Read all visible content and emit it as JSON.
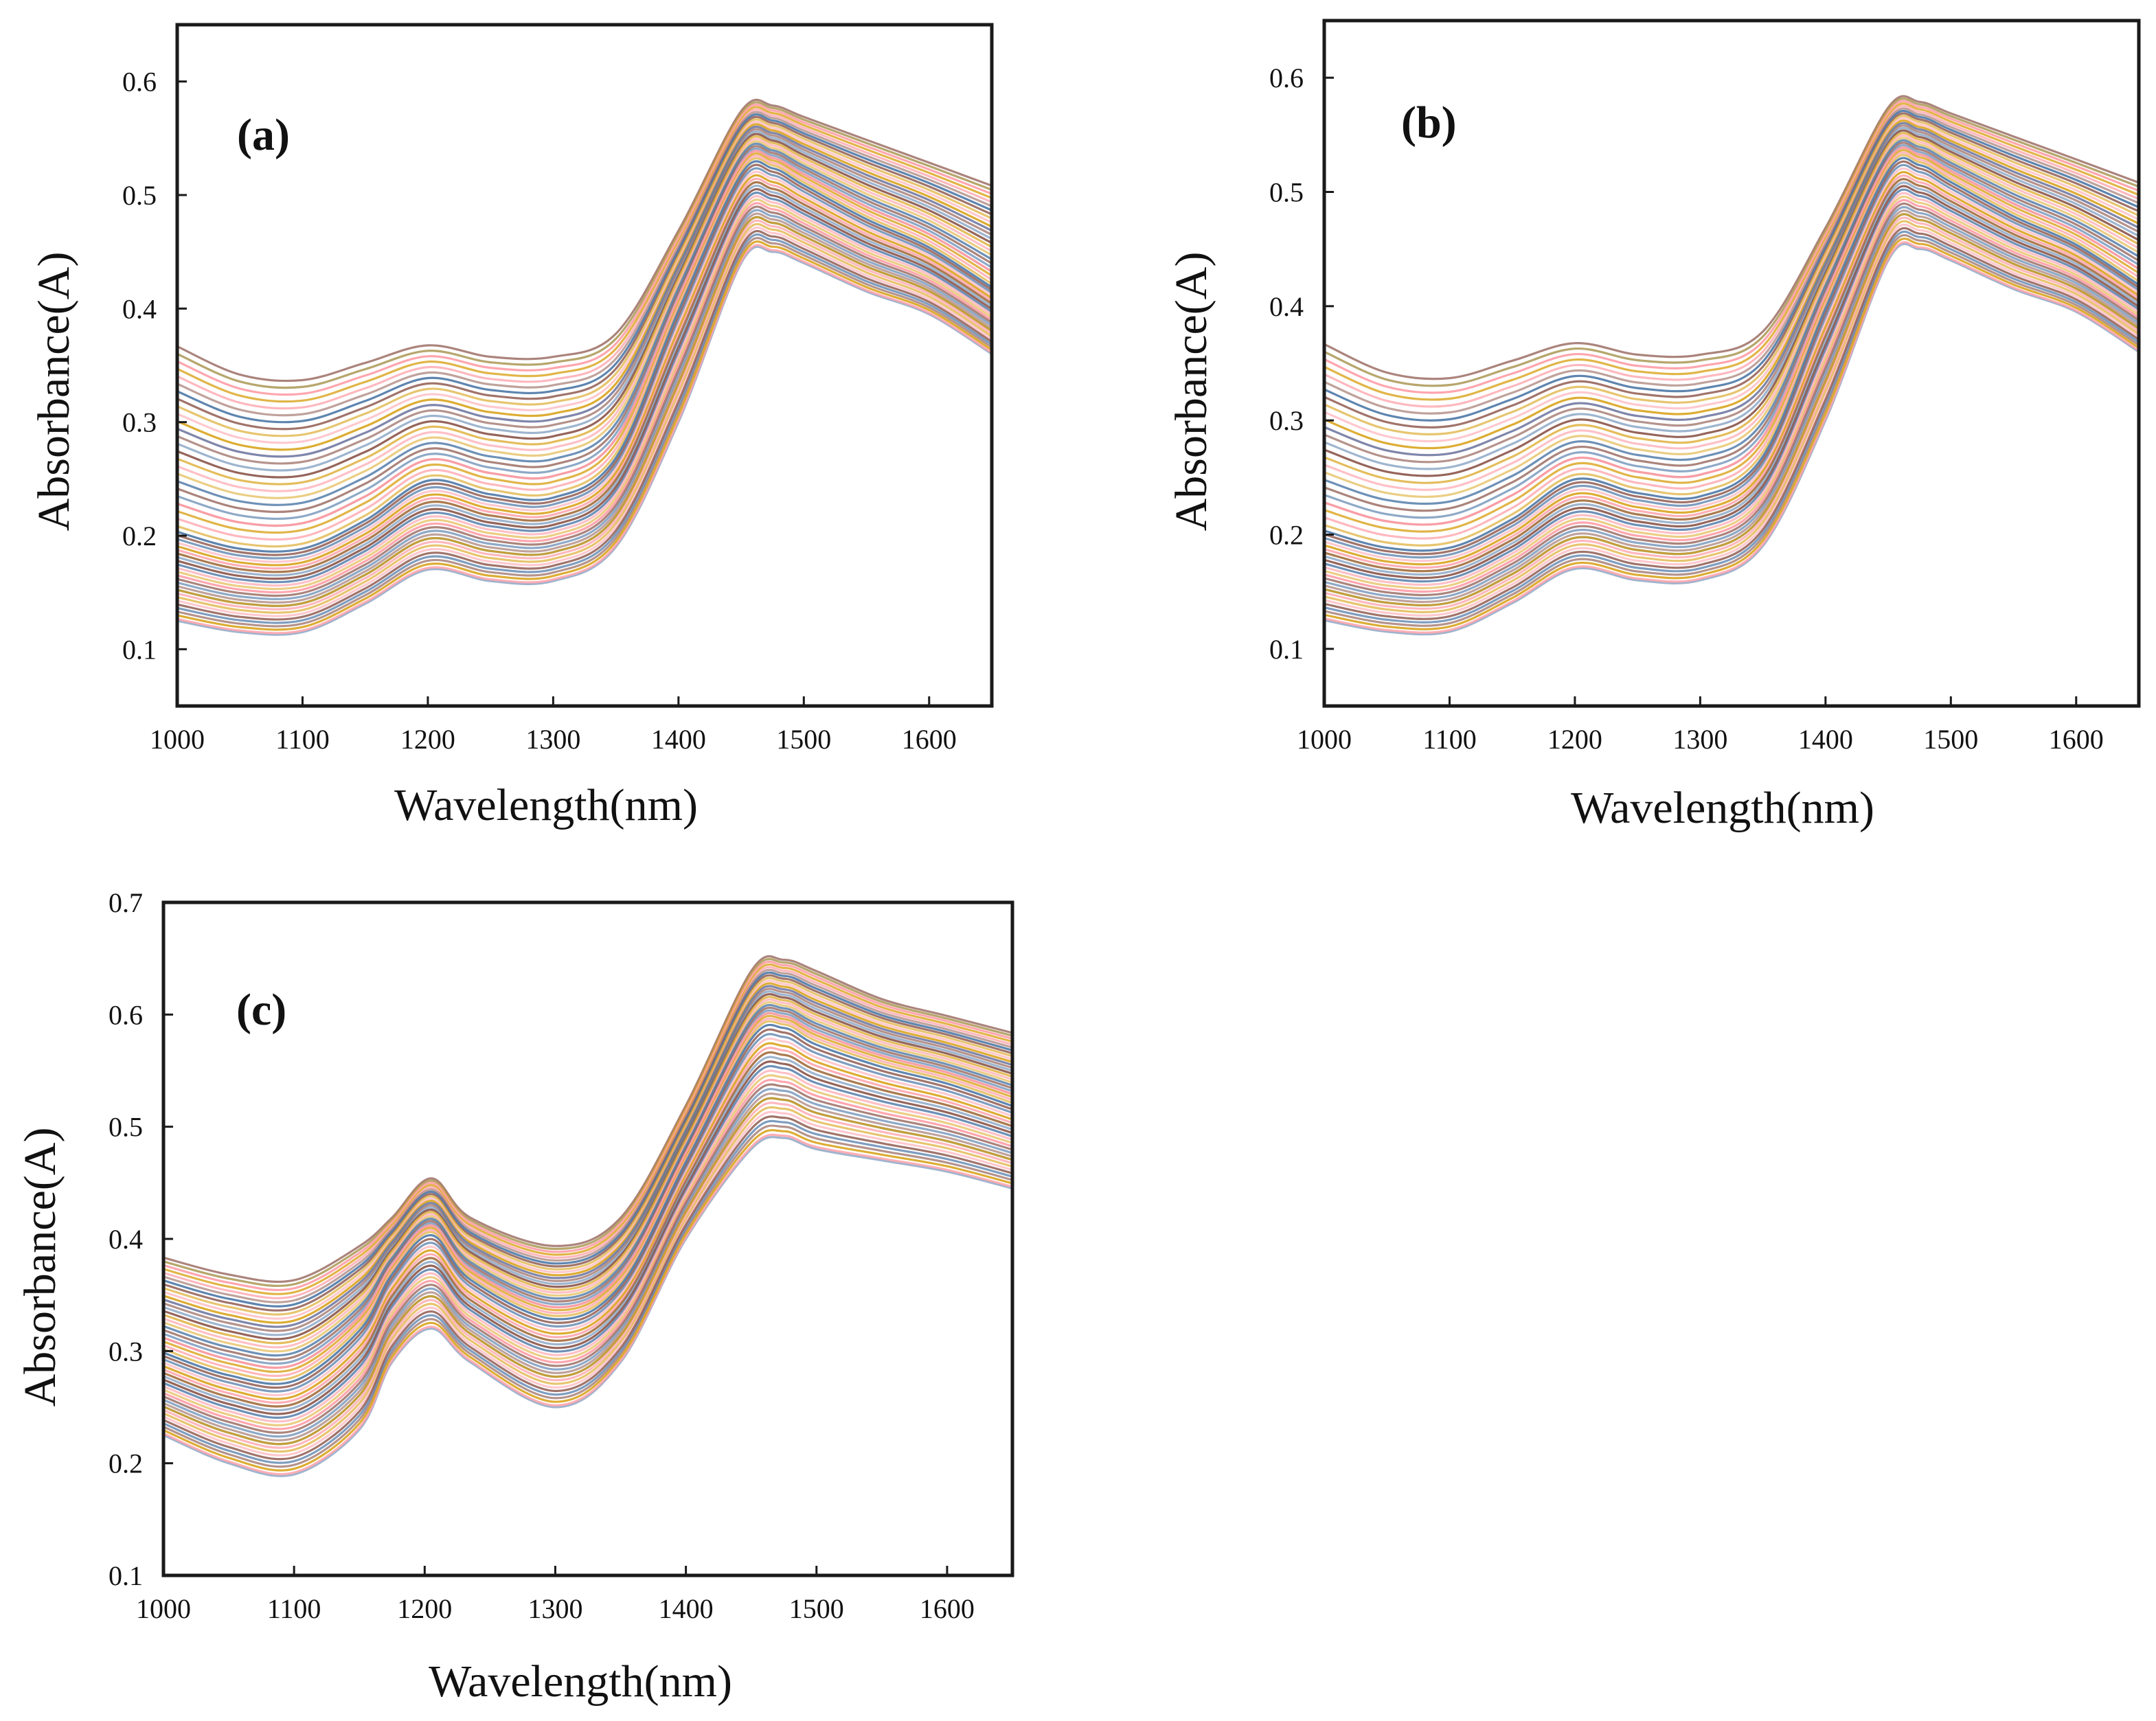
{
  "figure": {
    "panels": [
      "a",
      "b",
      "c"
    ]
  },
  "palette": [
    "#4e79a7",
    "#f28e2b",
    "#e15759",
    "#76b7b2",
    "#59a14f",
    "#edc948",
    "#b07aa1",
    "#ff9da7",
    "#9c755f",
    "#bab0ac",
    "#1f77b4",
    "#ff7f0e",
    "#2ca02c",
    "#17becf",
    "#8c564b",
    "#7f7f7f",
    "#bcbd22",
    "#d62728",
    "#9467bd",
    "#e377c2",
    "#6b8e23",
    "#daa520",
    "#2f4f4f",
    "#cd853f",
    "#20b2aa",
    "#87ceeb",
    "#556b2f",
    "#f4a460"
  ],
  "chart_data": [
    {
      "id": "a",
      "type": "line",
      "panel_label": "(a)",
      "title": "",
      "xlabel": "Wavelength(nm)",
      "ylabel": "Absorbance(A)",
      "xlim": [
        1000,
        1650
      ],
      "ylim": [
        0.05,
        0.65
      ],
      "xticks": [
        1000,
        1100,
        1200,
        1300,
        1400,
        1500,
        1600
      ],
      "yticks": [
        0.1,
        0.2,
        0.3,
        0.4,
        0.5,
        0.6
      ],
      "xtick_labels": [
        "1000",
        "1100",
        "1200",
        "1300",
        "1400",
        "1500",
        "1600"
      ],
      "ytick_labels": [
        "0.1",
        "0.2",
        "0.3",
        "0.4",
        "0.5",
        "0.6"
      ],
      "wavelengths": [
        1000,
        1050,
        1100,
        1150,
        1200,
        1250,
        1300,
        1350,
        1400,
        1450,
        1475,
        1500,
        1550,
        1600,
        1650
      ],
      "series_count": 56,
      "representative_series": [
        {
          "name": "lowest",
          "values": [
            0.125,
            0.115,
            0.115,
            0.14,
            0.17,
            0.16,
            0.16,
            0.19,
            0.3,
            0.44,
            0.45,
            0.44,
            0.415,
            0.395,
            0.36
          ]
        },
        {
          "name": "median",
          "values": [
            0.205,
            0.19,
            0.19,
            0.215,
            0.25,
            0.238,
            0.235,
            0.27,
            0.4,
            0.52,
            0.525,
            0.51,
            0.48,
            0.455,
            0.42
          ]
        },
        {
          "name": "highest",
          "values": [
            0.37,
            0.345,
            0.34,
            0.355,
            0.37,
            0.36,
            0.36,
            0.38,
            0.47,
            0.575,
            0.58,
            0.57,
            0.55,
            0.53,
            0.51
          ]
        }
      ]
    },
    {
      "id": "b",
      "type": "line",
      "panel_label": "(b)",
      "title": "",
      "xlabel": "Wavelength(nm)",
      "ylabel": "Absorbance(A)",
      "xlim": [
        1000,
        1650
      ],
      "ylim": [
        0.05,
        0.65
      ],
      "xticks": [
        1000,
        1100,
        1200,
        1300,
        1400,
        1500,
        1600
      ],
      "yticks": [
        0.1,
        0.2,
        0.3,
        0.4,
        0.5,
        0.6
      ],
      "xtick_labels": [
        "1000",
        "1100",
        "1200",
        "1300",
        "1400",
        "1500",
        "1600"
      ],
      "ytick_labels": [
        "0.1",
        "0.2",
        "0.3",
        "0.4",
        "0.5",
        "0.6"
      ],
      "wavelengths": [
        1000,
        1050,
        1100,
        1150,
        1200,
        1250,
        1300,
        1350,
        1400,
        1450,
        1475,
        1500,
        1550,
        1600,
        1650
      ],
      "series_count": 56,
      "representative_series": [
        {
          "name": "lowest",
          "values": [
            0.125,
            0.115,
            0.115,
            0.14,
            0.17,
            0.16,
            0.16,
            0.19,
            0.3,
            0.44,
            0.45,
            0.44,
            0.415,
            0.395,
            0.36
          ]
        },
        {
          "name": "median",
          "values": [
            0.205,
            0.19,
            0.19,
            0.215,
            0.25,
            0.238,
            0.235,
            0.27,
            0.4,
            0.52,
            0.525,
            0.51,
            0.48,
            0.455,
            0.42
          ]
        },
        {
          "name": "highest",
          "values": [
            0.37,
            0.345,
            0.34,
            0.355,
            0.37,
            0.36,
            0.36,
            0.38,
            0.47,
            0.575,
            0.58,
            0.57,
            0.55,
            0.53,
            0.51
          ]
        }
      ]
    },
    {
      "id": "c",
      "type": "line",
      "panel_label": "(c)",
      "title": "",
      "xlabel": "Wavelength(nm)",
      "ylabel": "Absorbance(A)",
      "xlim": [
        1000,
        1650
      ],
      "ylim": [
        0.1,
        0.7
      ],
      "xticks": [
        1000,
        1100,
        1200,
        1300,
        1400,
        1500,
        1600
      ],
      "yticks": [
        0.1,
        0.2,
        0.3,
        0.4,
        0.5,
        0.6,
        0.7
      ],
      "xtick_labels": [
        "1000",
        "1100",
        "1200",
        "1300",
        "1400",
        "1500",
        "1600"
      ],
      "ytick_labels": [
        "0.1",
        "0.2",
        "0.3",
        "0.4",
        "0.5",
        "0.6",
        "0.7"
      ],
      "wavelengths": [
        1000,
        1050,
        1100,
        1150,
        1175,
        1205,
        1235,
        1300,
        1350,
        1400,
        1450,
        1475,
        1500,
        1550,
        1600,
        1650
      ],
      "series_count": 56,
      "representative_series": [
        {
          "name": "lowest",
          "values": [
            0.225,
            0.2,
            0.19,
            0.23,
            0.29,
            0.32,
            0.29,
            0.25,
            0.29,
            0.4,
            0.48,
            0.49,
            0.48,
            0.47,
            0.46,
            0.445
          ]
        },
        {
          "name": "median",
          "values": [
            0.3,
            0.28,
            0.275,
            0.32,
            0.37,
            0.405,
            0.365,
            0.33,
            0.36,
            0.47,
            0.58,
            0.59,
            0.575,
            0.555,
            0.54,
            0.52
          ]
        },
        {
          "name": "highest",
          "values": [
            0.385,
            0.37,
            0.365,
            0.395,
            0.42,
            0.455,
            0.42,
            0.395,
            0.42,
            0.52,
            0.64,
            0.65,
            0.64,
            0.615,
            0.6,
            0.585
          ]
        }
      ]
    }
  ]
}
